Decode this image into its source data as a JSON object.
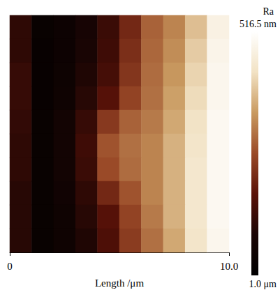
{
  "chart_data": {
    "type": "heatmap",
    "x_label": "Length /μm",
    "xlim": [
      0,
      10
    ],
    "xticks": [
      0,
      {
        "value": 10,
        "label": "10.0"
      }
    ],
    "tick_labels": "x",
    "cells": [
      [
        894,
        971,
        961,
        928,
        879,
        807,
        734,
        700,
        637,
        555
      ],
      [
        894,
        976,
        961,
        923,
        874,
        797,
        729,
        691,
        623,
        546
      ],
      [
        884,
        976,
        957,
        913,
        865,
        787,
        724,
        681,
        613,
        541
      ],
      [
        884,
        976,
        952,
        903,
        845,
        768,
        720,
        671,
        604,
        541
      ],
      [
        889,
        971,
        942,
        884,
        782,
        734,
        710,
        662,
        594,
        536
      ],
      [
        894,
        971,
        942,
        874,
        749,
        720,
        700,
        652,
        589,
        536
      ],
      [
        894,
        971,
        942,
        879,
        758,
        724,
        700,
        652,
        584,
        536
      ],
      [
        903,
        971,
        947,
        894,
        807,
        749,
        700,
        652,
        584,
        536
      ],
      [
        903,
        971,
        952,
        903,
        845,
        768,
        710,
        652,
        584,
        536
      ],
      [
        903,
        971,
        952,
        913,
        855,
        778,
        720,
        662,
        589,
        541
      ]
    ],
    "colorbar": {
      "title": "Ra",
      "range": [
        1000,
        516.5
      ],
      "ticks": [
        {
          "value": 516.5,
          "label": "516.5 nm"
        },
        {
          "value": 1000,
          "label": "1.0 μm"
        }
      ]
    }
  }
}
